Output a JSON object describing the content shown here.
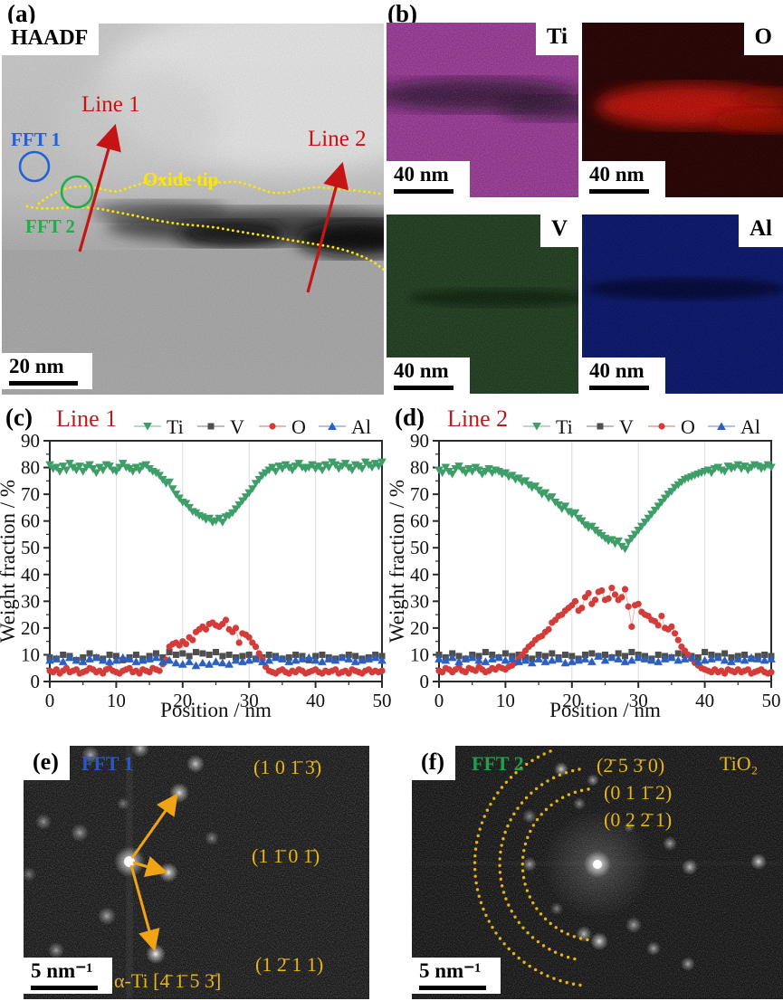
{
  "figure": {
    "panel_a": {
      "label": "(a)",
      "technique_label": "HAADF",
      "annotations": {
        "line1": "Line 1",
        "line2": "Line 2",
        "fft1": "FFT 1",
        "fft2": "FFT 2",
        "oxide_tip": "Oxide tip"
      },
      "scale_bar": "20 nm",
      "colors": {
        "line_arrow": "#c41414",
        "fft1": "#1f63d6",
        "fft2": "#1fae4a",
        "oxide_outline": "#ffe600"
      }
    },
    "panel_b": {
      "label": "(b)",
      "maps": [
        {
          "element": "Ti",
          "scale_bar": "40 nm",
          "base_color": "#9b3a97"
        },
        {
          "element": "O",
          "scale_bar": "40 nm",
          "base_color": "#2a0505"
        },
        {
          "element": "V",
          "scale_bar": "40 nm",
          "base_color": "#1e3c1e"
        },
        {
          "element": "Al",
          "scale_bar": "40 nm",
          "base_color": "#0d1a6e"
        }
      ]
    },
    "panel_c": {
      "label": "(c)"
    },
    "panel_d": {
      "label": "(d)"
    },
    "panel_e": {
      "label": "(e)",
      "fft_label": "FFT 1",
      "fft_label_color": "#2a57c8",
      "reflections": [
        "(1 0 1̄ 3̄)",
        "(1 1̄ 0 1̄)",
        "(1 2̄ 1 1)"
      ],
      "zone_axis": "α-Ti [4̄ 1̄ 5 3̄]",
      "scale_bar": "5 nm⁻¹",
      "annotation_color": "#e7b511"
    },
    "panel_f": {
      "label": "(f)",
      "fft_label": "FFT 2",
      "fft_label_color": "#1fa04a",
      "phase": "TiO₂",
      "rings": [
        "(2̄ 5 3̄ 0)",
        "(0 1 1̄ 2)",
        "(0 2 2̄ 1)"
      ],
      "scale_bar": "5 nm⁻¹",
      "annotation_color": "#e7b511"
    }
  },
  "chart_data": [
    {
      "id": "line1",
      "type": "scatter",
      "title": "Line 1",
      "title_color": "#b51d1d",
      "xlabel": "Position / nm",
      "ylabel": "Weight fraction / %",
      "xlim": [
        0,
        50
      ],
      "ylim": [
        0,
        90
      ],
      "x_major": 10,
      "x_minor": 5,
      "y_major": 10,
      "y_minor": 5,
      "grid": "vertical-major",
      "legend_position": "top",
      "series": [
        {
          "name": "Ti",
          "marker": "triangle-down",
          "color": "#3e9e68",
          "x_start": 0,
          "x_step": 0.5,
          "values": [
            81,
            79.5,
            80,
            78.5,
            80.5,
            79,
            81.5,
            80,
            79,
            80.5,
            78.5,
            80,
            81,
            79.5,
            78,
            80,
            79,
            81,
            80.5,
            79,
            78.5,
            80,
            81.5,
            80,
            79.5,
            78.5,
            80,
            79,
            80.5,
            81,
            79.5,
            78.5,
            78,
            77,
            75.5,
            74,
            74.5,
            72,
            70,
            68.5,
            67,
            66.5,
            65,
            63.5,
            63,
            62,
            61.5,
            60.5,
            61,
            59.5,
            60,
            61,
            59.5,
            61.5,
            62,
            63,
            64.5,
            66,
            67.5,
            69,
            70.5,
            72,
            74,
            75.5,
            77,
            78,
            79,
            80,
            78.5,
            80.5,
            79.5,
            81,
            80,
            79,
            80.5,
            81.5,
            80,
            79.5,
            80,
            81,
            79.5,
            80.5,
            79,
            81,
            80,
            82,
            81,
            79.5,
            80.5,
            81.5,
            80,
            79,
            81,
            80.5,
            79.5,
            82,
            81,
            80,
            81.5,
            80.5,
            82
          ]
        },
        {
          "name": "V",
          "marker": "square",
          "color": "#4f4f4f",
          "x_start": 0,
          "x_step": 1,
          "values": [
            9,
            8.5,
            10,
            9.5,
            8,
            9,
            10.5,
            9,
            8.5,
            10,
            9.5,
            8,
            9,
            10,
            8.5,
            9.5,
            10.5,
            9,
            11,
            10,
            10.5,
            9.5,
            11,
            10.5,
            10,
            11,
            9.5,
            10,
            9,
            9.5,
            10,
            8.5,
            9,
            10,
            9.5,
            8.5,
            9,
            10,
            9.5,
            8,
            9.5,
            10,
            9,
            8.5,
            9,
            10,
            9.5,
            8.5,
            9,
            10,
            9.5
          ]
        },
        {
          "name": "O",
          "marker": "circle",
          "color": "#d43c39",
          "x_start": 0,
          "x_step": 0.5,
          "values": [
            4,
            3.5,
            4.5,
            3,
            4,
            5,
            3.5,
            4,
            4.5,
            3,
            3.5,
            4,
            5,
            4.5,
            3.5,
            4,
            3,
            4.5,
            5,
            4,
            3.5,
            3,
            4,
            4.5,
            5,
            3.5,
            4,
            3,
            4.5,
            4,
            3.5,
            5,
            4.5,
            4,
            6.5,
            8,
            13,
            14,
            14.5,
            13.5,
            15,
            14,
            16.5,
            15.5,
            18.5,
            19.5,
            20.5,
            19.5,
            21.5,
            22,
            21,
            20.5,
            21.5,
            23,
            19.5,
            18.5,
            20,
            14.5,
            18,
            17.5,
            16.5,
            14.5,
            13,
            10.5,
            8.5,
            5.5,
            4,
            3.5,
            3,
            4,
            4.5,
            3.5,
            3,
            4,
            3.5,
            4.5,
            4,
            3,
            3.5,
            4,
            4.5,
            3.5,
            3,
            4,
            3.5,
            4,
            4.5,
            3,
            3.5,
            4,
            3,
            4.5,
            4,
            3.5,
            3,
            4,
            4.5,
            3.5,
            4,
            3.5,
            4
          ]
        },
        {
          "name": "Al",
          "marker": "triangle-up",
          "color": "#2b5fc0",
          "x_start": 0,
          "x_step": 1,
          "values": [
            8,
            8.5,
            7.5,
            9,
            8,
            7.5,
            8.5,
            9,
            8,
            7.5,
            8,
            9,
            8.5,
            7.5,
            8,
            8.5,
            9,
            7.5,
            8,
            7,
            6.5,
            7.5,
            6,
            7,
            6.5,
            7.5,
            7,
            6.5,
            8,
            7.5,
            8,
            8.5,
            7.5,
            8,
            9,
            8.5,
            7.5,
            8,
            8.5,
            9,
            8,
            7.5,
            8.5,
            8,
            9,
            8.5,
            7.5,
            8,
            8.5,
            9,
            8
          ]
        }
      ]
    },
    {
      "id": "line2",
      "type": "scatter",
      "title": "Line 2",
      "title_color": "#b51d1d",
      "xlabel": "Position / nm",
      "ylabel": "Weight fraction / %",
      "xlim": [
        0,
        50
      ],
      "ylim": [
        0,
        90
      ],
      "x_major": 10,
      "x_minor": 5,
      "y_major": 10,
      "y_minor": 5,
      "grid": "vertical-major",
      "legend_position": "top",
      "series": [
        {
          "name": "Ti",
          "marker": "triangle-down",
          "color": "#3e9e68",
          "x_start": 0,
          "x_step": 0.5,
          "values": [
            79,
            78,
            80,
            78.5,
            77.5,
            79.5,
            80.5,
            79,
            78,
            79.5,
            78.5,
            80,
            79,
            77.5,
            78.5,
            79.5,
            78,
            79,
            78.5,
            77.5,
            78,
            76.5,
            77,
            75.5,
            76,
            74.5,
            75,
            73.5,
            72.5,
            73,
            71.5,
            70,
            70.5,
            68.5,
            69,
            67,
            66,
            64.5,
            65.5,
            63.5,
            62.5,
            63,
            61,
            60,
            58.5,
            57.5,
            58,
            56.5,
            55.5,
            54.5,
            53.5,
            52.5,
            53,
            51.5,
            52.5,
            50.5,
            49.5,
            52,
            53.5,
            55,
            56.5,
            58,
            59.5,
            61,
            62.5,
            64,
            65.5,
            67,
            68.5,
            70,
            71,
            72.5,
            73.5,
            74.5,
            75.5,
            76,
            76.5,
            77,
            77.5,
            78,
            78.5,
            79,
            78,
            79.5,
            80,
            79,
            78.5,
            80.5,
            79.5,
            80,
            81,
            79.5,
            80.5,
            79,
            80,
            81,
            80.5,
            79.5,
            80,
            81,
            80
          ]
        },
        {
          "name": "V",
          "marker": "square",
          "color": "#4f4f4f",
          "x_start": 0,
          "x_step": 1,
          "values": [
            10,
            9,
            10.5,
            9.5,
            8.5,
            10,
            9.5,
            11,
            10,
            9,
            10.5,
            9.5,
            10,
            9,
            8.5,
            10,
            9.5,
            10.5,
            9,
            10,
            9.5,
            8.5,
            10,
            10.5,
            9.5,
            10,
            9,
            10.5,
            9.5,
            11,
            10,
            9.5,
            8.5,
            10,
            9.5,
            9,
            10.5,
            10,
            9.5,
            9,
            11,
            10,
            9.5,
            10.5,
            9,
            9.5,
            10,
            8.5,
            9.5,
            10,
            9.5
          ]
        },
        {
          "name": "O",
          "marker": "circle",
          "color": "#d43c39",
          "x_start": 0,
          "x_step": 0.5,
          "values": [
            4,
            3.5,
            5,
            4.5,
            3.5,
            4.5,
            5.5,
            4,
            3.5,
            5,
            4.5,
            4,
            5.5,
            4.5,
            3.5,
            4,
            5,
            4.5,
            5.5,
            5,
            4.5,
            5.5,
            6,
            7,
            8.5,
            10,
            11.5,
            13,
            14,
            15.5,
            16.5,
            17,
            18.5,
            19.5,
            22,
            23,
            24.5,
            25,
            26.5,
            27.5,
            28.5,
            30,
            26.5,
            27.5,
            31.5,
            33,
            29,
            30.5,
            33.5,
            34,
            30.5,
            31,
            35,
            32.5,
            30.5,
            31.5,
            34.5,
            28,
            20.5,
            28.5,
            29,
            26,
            25,
            24.5,
            23,
            22.5,
            21,
            24.5,
            20,
            19.5,
            20.5,
            18,
            15.5,
            13,
            11.5,
            10,
            8.5,
            7,
            6,
            5,
            4.5,
            4,
            3.5,
            4.5,
            3.5,
            4,
            3,
            4.5,
            4,
            3.5,
            4.5,
            3.5,
            4,
            4.5,
            3,
            3.5,
            4,
            4.5,
            3.5,
            3,
            3.5
          ]
        },
        {
          "name": "Al",
          "marker": "triangle-up",
          "color": "#2b5fc0",
          "x_start": 0,
          "x_step": 1,
          "values": [
            8.5,
            8,
            9,
            7.5,
            8.5,
            9,
            8,
            7.5,
            8.5,
            9,
            8,
            8.5,
            7.5,
            8,
            7,
            8.5,
            7.5,
            8,
            8.5,
            7,
            7.5,
            8,
            8.5,
            7.5,
            9.5,
            8,
            9,
            8.5,
            7.5,
            8,
            9,
            8.5,
            8,
            7.5,
            8.5,
            9,
            8,
            8.5,
            9,
            7.5,
            8,
            8.5,
            9,
            8,
            7.5,
            8.5,
            8,
            9,
            8.5,
            8,
            8.5
          ]
        }
      ]
    }
  ]
}
